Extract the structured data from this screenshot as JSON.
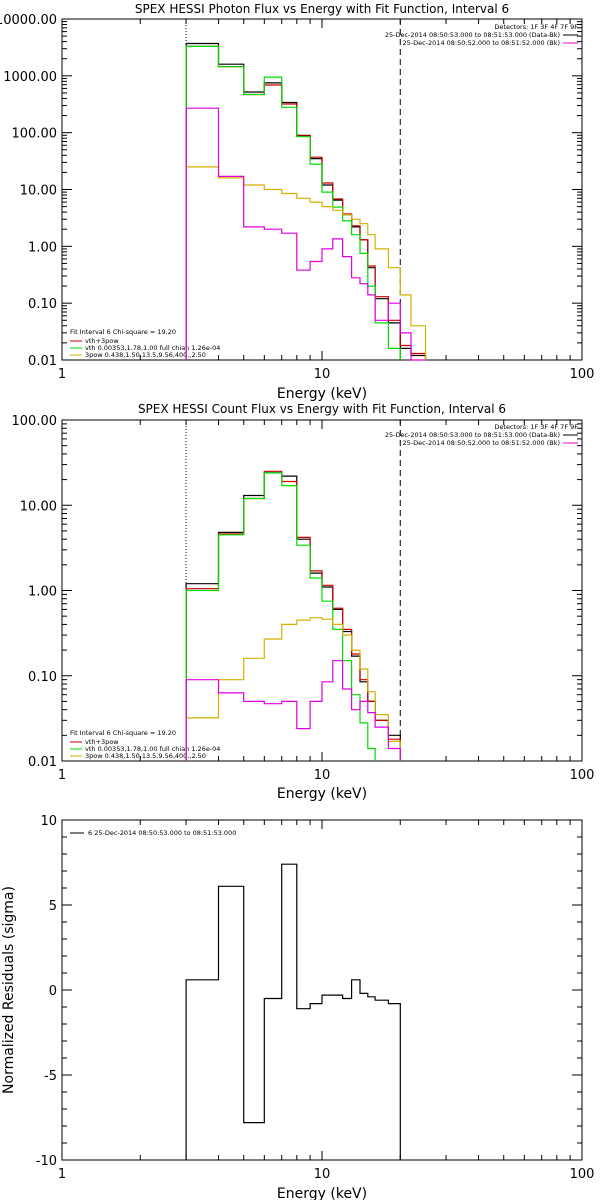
{
  "chart_data": [
    {
      "type": "line",
      "title": "SPEX HESSI Photon Flux vs Energy with Fit Function, Interval 6",
      "xlabel": "Energy (keV)",
      "x_scale": "log",
      "y_scale": "log",
      "xlim": [
        1,
        100
      ],
      "ylim": [
        0.01,
        10000
      ],
      "xticks": [
        "1",
        "10",
        "100"
      ],
      "yticks": [
        "0.01",
        "0.10",
        "1.00",
        "10.00",
        "100.00",
        "1000.00",
        "10000.00"
      ],
      "vlines": [
        3.0,
        20.0
      ],
      "annotations": [
        "Detectors: 1F 3F 4F 7F 9F",
        "25-Dec-2014 08:50:53.000 to 08:51:53.000 (Data-Bk)",
        "25-Dec-2014 08:50:52.000 to 08:51:52.000 (Bk)"
      ],
      "legend": [
        "Fit Interval 6   Chi-square = 19.20",
        "vth+3pow",
        "vth 0.00353,1.78,1.00  full chian 1.26e-04",
        "3pow 0.438,1.50,13.5,9.56,400.,2.50"
      ],
      "edges": [
        3.0,
        4.0,
        5.0,
        6.0,
        7.0,
        8.0,
        9.0,
        10.0,
        11.0,
        12.0,
        13.0,
        14.0,
        15.0,
        16.0,
        18.0,
        20.0,
        22.0,
        25.0
      ],
      "series": [
        {
          "name": "Data-Bk",
          "color": "#000000",
          "values": [
            3700,
            1600,
            520,
            750,
            340,
            90,
            35,
            12,
            6.5,
            3.6,
            2.2,
            1.3,
            0.42,
            0.12,
            0.045,
            0.016,
            0.012
          ]
        },
        {
          "name": "vth+3pow",
          "color": "#cc0000",
          "values": [
            3300,
            1450,
            470,
            690,
            320,
            88,
            37,
            13,
            6.8,
            3.7,
            2.3,
            1.3,
            0.45,
            0.13,
            0.05,
            0.018,
            0.013
          ]
        },
        {
          "name": "vth",
          "color": "#00dd00",
          "values": [
            3300,
            1450,
            470,
            950,
            280,
            85,
            28,
            9,
            4.9,
            2.8,
            1.6,
            0.75,
            0.2,
            0.045,
            0.016
          ]
        },
        {
          "name": "3pow",
          "color": "#d4b000",
          "values": [
            25,
            16,
            12,
            10,
            8.5,
            7,
            6,
            5,
            4.3,
            3.6,
            3,
            2.5,
            1.6,
            0.9,
            0.42,
            0.14,
            0.04
          ]
        },
        {
          "name": "Bk",
          "color": "#e000e0",
          "values": [
            270,
            17,
            2.2,
            2,
            1.7,
            0.38,
            0.54,
            0.9,
            1.35,
            0.66,
            0.28,
            0.22,
            0.14,
            0.05,
            0.1,
            0.03,
            0.01
          ]
        }
      ]
    },
    {
      "type": "line",
      "title": "SPEX HESSI Count Flux vs Energy with Fit Function, Interval 6",
      "xlabel": "Energy (keV)",
      "x_scale": "log",
      "y_scale": "log",
      "xlim": [
        1,
        100
      ],
      "ylim": [
        0.01,
        100
      ],
      "xticks": [
        "1",
        "10",
        "100"
      ],
      "yticks": [
        "0.01",
        "0.10",
        "1.00",
        "10.00",
        "100.00"
      ],
      "vlines": [
        3.0,
        20.0
      ],
      "annotations": [
        "Detectors: 1F 3F 4F 7F 9F",
        "25-Dec-2014 08:50:53.000 to 08:51:53.000 (Data-Bk)",
        "25-Dec-2014 08:50:52.000 to 08:51:52.000 (Bk)"
      ],
      "legend": [
        "Fit Interval 6   Chi-square = 19.20",
        "vth+3pow",
        "vth 0.00353,1.78,1.00  full chian 1.26e-04",
        "3pow 0.438,1.50,13.5,9.56,400.,2.50"
      ],
      "edges": [
        3.0,
        4.0,
        5.0,
        6.0,
        7.0,
        8.0,
        9.0,
        10.0,
        11.0,
        12.0,
        13.0,
        14.0,
        15.0,
        16.0,
        18.0,
        20.0,
        22.0
      ],
      "series": [
        {
          "name": "Data-Bk",
          "color": "#000000",
          "values": [
            1.2,
            4.8,
            13,
            24,
            22,
            4.0,
            1.6,
            1.1,
            0.6,
            0.33,
            0.17,
            0.085,
            0.05,
            0.03,
            0.02
          ]
        },
        {
          "name": "vth+3pow",
          "color": "#cc0000",
          "values": [
            1.05,
            4.6,
            12,
            25,
            19,
            4.2,
            1.7,
            1.15,
            0.62,
            0.35,
            0.18,
            0.09,
            0.05,
            0.03,
            0.018
          ]
        },
        {
          "name": "vth",
          "color": "#00dd00",
          "values": [
            1.0,
            4.5,
            12,
            24,
            17,
            3.4,
            1.4,
            0.75,
            0.35,
            0.15,
            0.06,
            0.028,
            0.014
          ]
        },
        {
          "name": "3pow",
          "color": "#d4b000",
          "values": [
            0.032,
            0.09,
            0.16,
            0.27,
            0.4,
            0.45,
            0.48,
            0.46,
            0.4,
            0.3,
            0.2,
            0.12,
            0.065,
            0.035,
            0.017
          ]
        },
        {
          "name": "Bk",
          "color": "#e000e0",
          "values": [
            0.09,
            0.063,
            0.05,
            0.047,
            0.05,
            0.024,
            0.05,
            0.085,
            0.15,
            0.07,
            0.04,
            0.05,
            0.037,
            0.025,
            0.014
          ]
        }
      ]
    },
    {
      "type": "line",
      "xlabel": "Energy (keV)",
      "ylabel": "Normalized Residuals (sigma)",
      "x_scale": "log",
      "xlim": [
        1,
        100
      ],
      "ylim": [
        -10,
        10
      ],
      "xticks": [
        "1",
        "10",
        "100"
      ],
      "yticks": [
        "-10",
        "-5",
        "0",
        "5",
        "10"
      ],
      "legend": [
        "6  25-Dec-2014 08:50:53.000 to 08:51:53.000"
      ],
      "edges": [
        3.0,
        4.0,
        5.0,
        6.0,
        7.0,
        8.0,
        9.0,
        10.0,
        11.0,
        12.0,
        13.0,
        14.0,
        15.0,
        16.0,
        18.0,
        20.0
      ],
      "series": [
        {
          "name": "residuals",
          "color": "#000000",
          "values": [
            0.6,
            6.1,
            -7.8,
            -0.5,
            7.4,
            -1.1,
            -0.8,
            -0.3,
            -0.3,
            -0.5,
            0.6,
            -0.2,
            -0.4,
            -0.6,
            -0.8
          ]
        }
      ]
    }
  ]
}
